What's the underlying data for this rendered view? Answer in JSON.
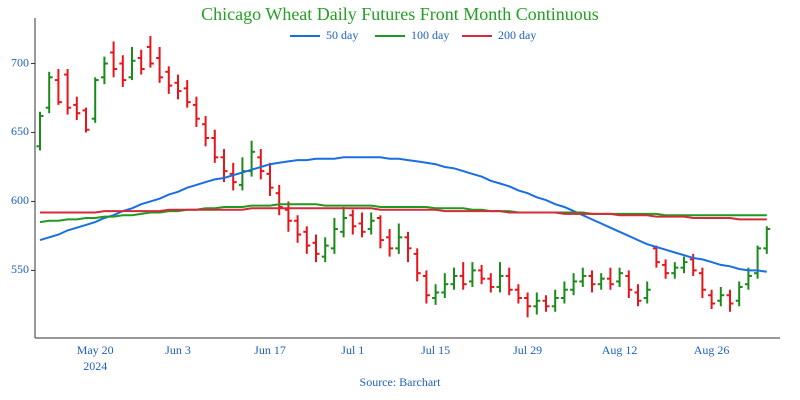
{
  "chart_data": {
    "type": "ohlc",
    "title": "Chicago Wheat Daily Futures Front Month Continuous",
    "source": "Source: Barchart",
    "categories": [
      null,
      null,
      null,
      null,
      null,
      null,
      "May 20",
      null,
      null,
      null,
      null,
      null,
      null,
      null,
      null,
      "Jun 3",
      null,
      null,
      null,
      null,
      null,
      null,
      null,
      null,
      null,
      "Jun 17",
      null,
      null,
      null,
      null,
      null,
      null,
      null,
      null,
      "Jul 1",
      null,
      null,
      null,
      null,
      null,
      null,
      null,
      null,
      "Jul 15",
      null,
      null,
      null,
      null,
      null,
      null,
      null,
      null,
      null,
      "Jul 29",
      null,
      null,
      null,
      null,
      null,
      null,
      null,
      null,
      null,
      "Aug 12",
      null,
      null,
      null,
      null,
      null,
      null,
      null,
      null,
      null,
      "Aug 26",
      null,
      null,
      null,
      null,
      null,
      null
    ],
    "category_sublabels": [
      null,
      null,
      null,
      null,
      null,
      null,
      "2024",
      null,
      null,
      null,
      null,
      null,
      null,
      null,
      null,
      null,
      null,
      null,
      null,
      null,
      null,
      null,
      null,
      null,
      null,
      null,
      null,
      null,
      null,
      null,
      null,
      null,
      null,
      null,
      null,
      null,
      null,
      null,
      null,
      null,
      null,
      null,
      null,
      null,
      null,
      null,
      null,
      null,
      null,
      null,
      null,
      null,
      null,
      null,
      null,
      null,
      null,
      null,
      null,
      null,
      null,
      null,
      null,
      null,
      null,
      null,
      null,
      null,
      null,
      null,
      null,
      null,
      null,
      null,
      null,
      null,
      null,
      null,
      null,
      null
    ],
    "open": [
      640,
      668,
      688,
      692,
      670,
      666,
      660,
      690,
      708,
      700,
      690,
      704,
      712,
      704,
      694,
      686,
      682,
      670,
      656,
      646,
      632,
      620,
      612,
      622,
      632,
      620,
      606,
      594,
      586,
      578,
      570,
      560,
      566,
      578,
      590,
      584,
      580,
      588,
      574,
      566,
      574,
      562,
      546,
      530,
      534,
      540,
      546,
      542,
      550,
      544,
      538,
      546,
      536,
      530,
      524,
      528,
      524,
      530,
      536,
      542,
      546,
      540,
      544,
      542,
      546,
      534,
      530,
      566,
      554,
      548,
      552,
      558,
      548,
      532,
      528,
      532,
      528,
      540,
      548,
      566
    ],
    "high": [
      665,
      694,
      696,
      696,
      676,
      668,
      690,
      705,
      716,
      706,
      712,
      710,
      720,
      712,
      698,
      692,
      688,
      676,
      662,
      652,
      638,
      628,
      632,
      644,
      638,
      628,
      612,
      600,
      590,
      582,
      576,
      574,
      588,
      596,
      594,
      592,
      592,
      590,
      580,
      584,
      578,
      566,
      550,
      540,
      548,
      552,
      556,
      556,
      554,
      548,
      556,
      552,
      540,
      534,
      534,
      532,
      536,
      542,
      548,
      552,
      550,
      548,
      552,
      552,
      550,
      540,
      542,
      568,
      558,
      556,
      560,
      562,
      552,
      536,
      538,
      536,
      542,
      552,
      568,
      582
    ],
    "low": [
      637,
      664,
      670,
      663,
      659,
      650,
      657,
      685,
      690,
      683,
      688,
      692,
      697,
      686,
      678,
      674,
      668,
      654,
      640,
      628,
      614,
      608,
      608,
      618,
      616,
      604,
      590,
      578,
      570,
      562,
      556,
      556,
      562,
      574,
      576,
      574,
      576,
      566,
      560,
      562,
      556,
      542,
      526,
      525,
      530,
      536,
      536,
      538,
      540,
      534,
      534,
      532,
      526,
      516,
      518,
      520,
      520,
      526,
      532,
      538,
      534,
      536,
      536,
      538,
      530,
      524,
      526,
      552,
      544,
      544,
      548,
      546,
      530,
      522,
      524,
      520,
      524,
      536,
      544,
      562
    ],
    "close": [
      662,
      690,
      672,
      668,
      664,
      652,
      688,
      700,
      696,
      688,
      702,
      696,
      700,
      690,
      684,
      680,
      672,
      660,
      646,
      632,
      622,
      614,
      622,
      636,
      622,
      610,
      596,
      586,
      576,
      568,
      562,
      568,
      580,
      588,
      582,
      578,
      586,
      572,
      566,
      574,
      566,
      548,
      532,
      534,
      540,
      546,
      540,
      550,
      544,
      538,
      546,
      536,
      530,
      524,
      528,
      524,
      530,
      536,
      542,
      546,
      540,
      544,
      540,
      548,
      536,
      528,
      536,
      556,
      548,
      552,
      556,
      550,
      536,
      526,
      532,
      526,
      538,
      546,
      566,
      580
    ],
    "up_color": "#1a8a1a",
    "down_color": "#e8141a",
    "series": [
      {
        "name": "50 day",
        "color": "#1a6fe0",
        "values": [
          572,
          574,
          576,
          579,
          581,
          583,
          585,
          588,
          590,
          593,
          595,
          598,
          600,
          602,
          605,
          607,
          610,
          612,
          614,
          616,
          617,
          619,
          621,
          623,
          625,
          627,
          628,
          629,
          630,
          630,
          631,
          631,
          631,
          632,
          632,
          632,
          632,
          632,
          631,
          631,
          630,
          629,
          628,
          627,
          625,
          624,
          622,
          620,
          618,
          615,
          613,
          611,
          608,
          606,
          603,
          601,
          598,
          596,
          593,
          590,
          587,
          584,
          581,
          578,
          575,
          572,
          569,
          567,
          565,
          563,
          561,
          559,
          558,
          556,
          554,
          553,
          551,
          550,
          550,
          549
        ]
      },
      {
        "name": "100 day",
        "color": "#1f9a1f",
        "values": [
          585,
          586,
          586,
          587,
          587,
          588,
          588,
          589,
          589,
          590,
          590,
          591,
          592,
          592,
          593,
          593,
          594,
          594,
          595,
          595,
          596,
          596,
          596,
          597,
          597,
          597,
          598,
          598,
          598,
          598,
          598,
          597,
          597,
          597,
          597,
          597,
          597,
          596,
          596,
          596,
          596,
          596,
          596,
          595,
          595,
          595,
          595,
          594,
          594,
          593,
          593,
          593,
          592,
          592,
          592,
          592,
          592,
          592,
          592,
          592,
          591,
          591,
          591,
          591,
          591,
          591,
          591,
          591,
          590,
          590,
          590,
          590,
          590,
          590,
          590,
          590,
          590,
          590,
          590,
          590
        ]
      },
      {
        "name": "200 day",
        "color": "#d42a3a",
        "values": [
          592,
          592,
          592,
          592,
          592,
          592,
          592,
          593,
          593,
          593,
          593,
          593,
          593,
          593,
          594,
          594,
          594,
          594,
          594,
          594,
          594,
          594,
          594,
          595,
          595,
          595,
          595,
          595,
          595,
          595,
          595,
          595,
          595,
          595,
          595,
          595,
          595,
          594,
          594,
          594,
          594,
          594,
          594,
          594,
          593,
          593,
          593,
          593,
          593,
          593,
          593,
          592,
          592,
          592,
          592,
          592,
          592,
          591,
          591,
          591,
          591,
          591,
          591,
          590,
          590,
          590,
          590,
          589,
          589,
          589,
          589,
          588,
          588,
          588,
          588,
          588,
          587,
          587,
          587,
          587
        ]
      }
    ],
    "ylim": [
      501,
      733
    ],
    "yticks": [
      550,
      600,
      650,
      700
    ]
  }
}
